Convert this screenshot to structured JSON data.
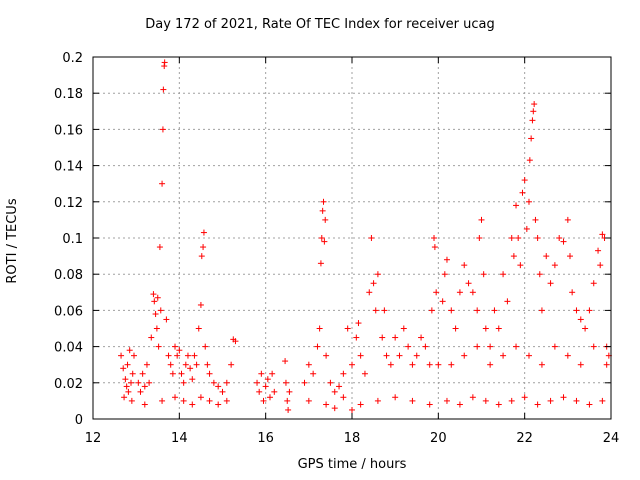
{
  "chart_data": {
    "type": "scatter",
    "title": "Day 172 of 2021, Rate Of TEC Index for receiver ucag",
    "xlabel": "GPS time / hours",
    "ylabel": "ROTI / TECUs",
    "xlim": [
      12,
      24
    ],
    "ylim": [
      0,
      0.2
    ],
    "xticks": [
      "12",
      "14",
      "16",
      "18",
      "20",
      "22",
      "24"
    ],
    "yticks": [
      "0",
      "0.02",
      "0.04",
      "0.06",
      "0.08",
      "0.1",
      "0.12",
      "0.14",
      "0.16",
      "0.18",
      "0.2"
    ],
    "grid": true,
    "marker": "+",
    "color": "#ff0000",
    "points": [
      [
        12.65,
        0.035
      ],
      [
        12.7,
        0.028
      ],
      [
        12.72,
        0.012
      ],
      [
        12.75,
        0.022
      ],
      [
        12.78,
        0.018
      ],
      [
        12.8,
        0.03
      ],
      [
        12.82,
        0.015
      ],
      [
        12.85,
        0.038
      ],
      [
        12.88,
        0.02
      ],
      [
        12.9,
        0.01
      ],
      [
        12.92,
        0.025
      ],
      [
        12.95,
        0.035
      ],
      [
        13.05,
        0.02
      ],
      [
        13.1,
        0.015
      ],
      [
        13.15,
        0.025
      ],
      [
        13.2,
        0.018
      ],
      [
        13.25,
        0.03
      ],
      [
        13.3,
        0.02
      ],
      [
        13.35,
        0.045
      ],
      [
        13.4,
        0.069
      ],
      [
        13.42,
        0.065
      ],
      [
        13.45,
        0.058
      ],
      [
        13.48,
        0.05
      ],
      [
        13.5,
        0.067
      ],
      [
        13.52,
        0.04
      ],
      [
        13.55,
        0.095
      ],
      [
        13.57,
        0.06
      ],
      [
        13.6,
        0.13
      ],
      [
        13.62,
        0.16
      ],
      [
        13.63,
        0.182
      ],
      [
        13.65,
        0.195
      ],
      [
        13.66,
        0.197
      ],
      [
        13.7,
        0.055
      ],
      [
        13.75,
        0.035
      ],
      [
        13.8,
        0.03
      ],
      [
        13.85,
        0.025
      ],
      [
        13.9,
        0.04
      ],
      [
        13.95,
        0.035
      ],
      [
        14.0,
        0.038
      ],
      [
        14.05,
        0.025
      ],
      [
        14.1,
        0.02
      ],
      [
        14.15,
        0.03
      ],
      [
        14.2,
        0.035
      ],
      [
        14.25,
        0.028
      ],
      [
        14.3,
        0.022
      ],
      [
        14.35,
        0.035
      ],
      [
        14.4,
        0.03
      ],
      [
        14.45,
        0.05
      ],
      [
        14.5,
        0.063
      ],
      [
        14.52,
        0.09
      ],
      [
        14.55,
        0.095
      ],
      [
        14.57,
        0.103
      ],
      [
        14.6,
        0.04
      ],
      [
        14.65,
        0.03
      ],
      [
        14.7,
        0.025
      ],
      [
        14.8,
        0.02
      ],
      [
        14.9,
        0.018
      ],
      [
        15.0,
        0.015
      ],
      [
        15.1,
        0.02
      ],
      [
        15.2,
        0.03
      ],
      [
        15.25,
        0.044
      ],
      [
        15.3,
        0.043
      ],
      [
        14.1,
        0.01
      ],
      [
        14.3,
        0.008
      ],
      [
        14.5,
        0.012
      ],
      [
        14.7,
        0.01
      ],
      [
        14.9,
        0.008
      ],
      [
        15.1,
        0.01
      ],
      [
        13.2,
        0.008
      ],
      [
        13.6,
        0.01
      ],
      [
        13.9,
        0.012
      ],
      [
        15.8,
        0.02
      ],
      [
        15.85,
        0.015
      ],
      [
        15.9,
        0.025
      ],
      [
        15.95,
        0.01
      ],
      [
        16.0,
        0.018
      ],
      [
        16.05,
        0.022
      ],
      [
        16.1,
        0.012
      ],
      [
        16.15,
        0.025
      ],
      [
        16.2,
        0.015
      ],
      [
        16.45,
        0.032
      ],
      [
        16.47,
        0.02
      ],
      [
        16.5,
        0.01
      ],
      [
        16.52,
        0.005
      ],
      [
        16.55,
        0.015
      ],
      [
        16.9,
        0.02
      ],
      [
        17.0,
        0.03
      ],
      [
        17.1,
        0.025
      ],
      [
        17.2,
        0.04
      ],
      [
        17.25,
        0.05
      ],
      [
        17.28,
        0.086
      ],
      [
        17.3,
        0.1
      ],
      [
        17.32,
        0.115
      ],
      [
        17.34,
        0.12
      ],
      [
        17.36,
        0.098
      ],
      [
        17.38,
        0.11
      ],
      [
        17.4,
        0.035
      ],
      [
        17.5,
        0.02
      ],
      [
        17.6,
        0.015
      ],
      [
        17.7,
        0.018
      ],
      [
        17.8,
        0.025
      ],
      [
        17.9,
        0.05
      ],
      [
        18.0,
        0.03
      ],
      [
        18.1,
        0.045
      ],
      [
        18.15,
        0.053
      ],
      [
        18.2,
        0.035
      ],
      [
        18.3,
        0.025
      ],
      [
        18.4,
        0.07
      ],
      [
        18.45,
        0.1
      ],
      [
        18.5,
        0.075
      ],
      [
        18.55,
        0.06
      ],
      [
        18.6,
        0.08
      ],
      [
        18.7,
        0.045
      ],
      [
        18.75,
        0.06
      ],
      [
        18.8,
        0.035
      ],
      [
        18.9,
        0.03
      ],
      [
        19.0,
        0.045
      ],
      [
        19.1,
        0.035
      ],
      [
        19.2,
        0.05
      ],
      [
        19.3,
        0.04
      ],
      [
        19.4,
        0.03
      ],
      [
        19.5,
        0.035
      ],
      [
        19.6,
        0.045
      ],
      [
        19.7,
        0.04
      ],
      [
        19.8,
        0.03
      ],
      [
        19.85,
        0.06
      ],
      [
        19.9,
        0.1
      ],
      [
        19.92,
        0.095
      ],
      [
        19.95,
        0.07
      ],
      [
        20.0,
        0.03
      ],
      [
        17.0,
        0.01
      ],
      [
        17.4,
        0.008
      ],
      [
        17.8,
        0.012
      ],
      [
        18.2,
        0.008
      ],
      [
        18.6,
        0.01
      ],
      [
        19.0,
        0.012
      ],
      [
        19.4,
        0.01
      ],
      [
        19.8,
        0.008
      ],
      [
        18.0,
        0.005
      ],
      [
        17.6,
        0.006
      ],
      [
        20.1,
        0.065
      ],
      [
        20.15,
        0.08
      ],
      [
        20.2,
        0.088
      ],
      [
        20.3,
        0.06
      ],
      [
        20.4,
        0.05
      ],
      [
        20.5,
        0.07
      ],
      [
        20.6,
        0.085
      ],
      [
        20.7,
        0.075
      ],
      [
        20.8,
        0.07
      ],
      [
        20.9,
        0.06
      ],
      [
        20.95,
        0.1
      ],
      [
        21.0,
        0.11
      ],
      [
        21.05,
        0.08
      ],
      [
        21.1,
        0.05
      ],
      [
        21.2,
        0.04
      ],
      [
        21.3,
        0.06
      ],
      [
        21.4,
        0.05
      ],
      [
        21.5,
        0.08
      ],
      [
        21.6,
        0.065
      ],
      [
        21.7,
        0.1
      ],
      [
        21.75,
        0.09
      ],
      [
        21.8,
        0.118
      ],
      [
        21.85,
        0.1
      ],
      [
        21.9,
        0.085
      ],
      [
        21.95,
        0.125
      ],
      [
        22.0,
        0.132
      ],
      [
        22.05,
        0.105
      ],
      [
        22.1,
        0.12
      ],
      [
        22.12,
        0.143
      ],
      [
        22.15,
        0.155
      ],
      [
        22.18,
        0.165
      ],
      [
        22.2,
        0.17
      ],
      [
        22.22,
        0.174
      ],
      [
        22.25,
        0.11
      ],
      [
        22.3,
        0.1
      ],
      [
        22.35,
        0.08
      ],
      [
        22.4,
        0.06
      ],
      [
        22.5,
        0.09
      ],
      [
        22.6,
        0.075
      ],
      [
        22.7,
        0.085
      ],
      [
        22.8,
        0.1
      ],
      [
        22.9,
        0.098
      ],
      [
        23.0,
        0.11
      ],
      [
        23.05,
        0.09
      ],
      [
        23.1,
        0.07
      ],
      [
        23.2,
        0.06
      ],
      [
        23.3,
        0.055
      ],
      [
        23.4,
        0.05
      ],
      [
        23.5,
        0.06
      ],
      [
        23.6,
        0.075
      ],
      [
        23.7,
        0.093
      ],
      [
        23.75,
        0.085
      ],
      [
        23.8,
        0.102
      ],
      [
        23.85,
        0.1
      ],
      [
        23.9,
        0.04
      ],
      [
        23.95,
        0.035
      ],
      [
        20.2,
        0.01
      ],
      [
        20.5,
        0.008
      ],
      [
        20.8,
        0.012
      ],
      [
        21.1,
        0.01
      ],
      [
        21.4,
        0.008
      ],
      [
        21.7,
        0.01
      ],
      [
        22.0,
        0.012
      ],
      [
        22.3,
        0.008
      ],
      [
        22.6,
        0.01
      ],
      [
        22.9,
        0.012
      ],
      [
        23.2,
        0.01
      ],
      [
        23.5,
        0.008
      ],
      [
        23.8,
        0.01
      ],
      [
        20.3,
        0.03
      ],
      [
        20.6,
        0.035
      ],
      [
        20.9,
        0.04
      ],
      [
        21.2,
        0.03
      ],
      [
        21.5,
        0.035
      ],
      [
        21.8,
        0.04
      ],
      [
        22.1,
        0.035
      ],
      [
        22.4,
        0.03
      ],
      [
        22.7,
        0.04
      ],
      [
        23.0,
        0.035
      ],
      [
        23.3,
        0.03
      ],
      [
        23.6,
        0.04
      ],
      [
        23.9,
        0.03
      ]
    ]
  }
}
